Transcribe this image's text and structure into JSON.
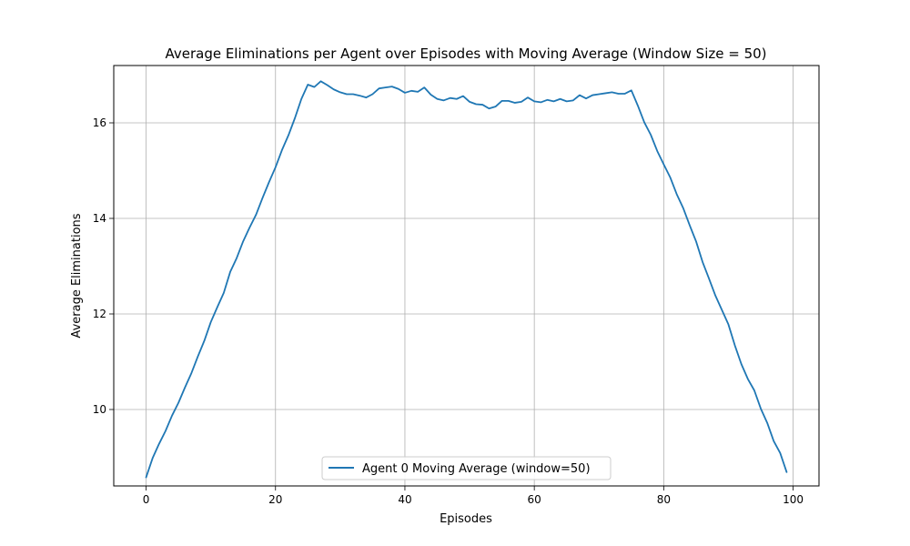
{
  "chart_data": {
    "type": "line",
    "title": "Average Eliminations per Agent over Episodes with Moving Average (Window Size = 50)",
    "xlabel": "Episodes",
    "ylabel": "Average Eliminations",
    "xlim": [
      -5,
      104
    ],
    "ylim": [
      8.4,
      17.2
    ],
    "xticks": [
      0,
      20,
      40,
      60,
      80,
      100
    ],
    "yticks": [
      10,
      12,
      14,
      16
    ],
    "grid": true,
    "legend_position": "bottom-center",
    "series": [
      {
        "name": "Agent 0 Moving Average (window=50)",
        "color": "#1f77b4",
        "x": [
          0,
          1,
          2,
          3,
          4,
          5,
          6,
          7,
          8,
          9,
          10,
          11,
          12,
          13,
          14,
          15,
          16,
          17,
          18,
          19,
          20,
          21,
          22,
          23,
          24,
          25,
          26,
          27,
          28,
          29,
          30,
          31,
          32,
          33,
          34,
          35,
          36,
          37,
          38,
          39,
          40,
          41,
          42,
          43,
          44,
          45,
          46,
          47,
          48,
          49,
          50,
          51,
          52,
          53,
          54,
          55,
          56,
          57,
          58,
          59,
          60,
          61,
          62,
          63,
          64,
          65,
          66,
          67,
          68,
          69,
          70,
          71,
          72,
          73,
          74,
          75,
          76,
          77,
          78,
          79,
          80,
          81,
          82,
          83,
          84,
          85,
          86,
          87,
          88,
          89,
          90,
          91,
          92,
          93,
          94,
          95,
          96,
          97,
          98,
          99
        ],
        "y": [
          8.58,
          8.98,
          9.28,
          9.55,
          9.87,
          10.14,
          10.46,
          10.76,
          11.11,
          11.44,
          11.83,
          12.14,
          12.44,
          12.88,
          13.17,
          13.52,
          13.81,
          14.08,
          14.43,
          14.76,
          15.07,
          15.43,
          15.74,
          16.1,
          16.5,
          16.8,
          16.75,
          16.87,
          16.79,
          16.7,
          16.64,
          16.6,
          16.6,
          16.57,
          16.53,
          16.6,
          16.72,
          16.74,
          16.76,
          16.71,
          16.63,
          16.67,
          16.65,
          16.74,
          16.59,
          16.5,
          16.47,
          16.52,
          16.5,
          16.56,
          16.44,
          16.39,
          16.38,
          16.3,
          16.34,
          16.46,
          16.46,
          16.42,
          16.44,
          16.53,
          16.45,
          16.43,
          16.48,
          16.45,
          16.5,
          16.45,
          16.47,
          16.58,
          16.51,
          16.58,
          16.6,
          16.62,
          16.64,
          16.61,
          16.61,
          16.68,
          16.36,
          16.01,
          15.75,
          15.41,
          15.13,
          14.86,
          14.51,
          14.22,
          13.86,
          13.52,
          13.09,
          12.74,
          12.38,
          12.08,
          11.78,
          11.34,
          10.95,
          10.64,
          10.4,
          10.02,
          9.72,
          9.34,
          9.09,
          8.69
        ]
      }
    ]
  }
}
